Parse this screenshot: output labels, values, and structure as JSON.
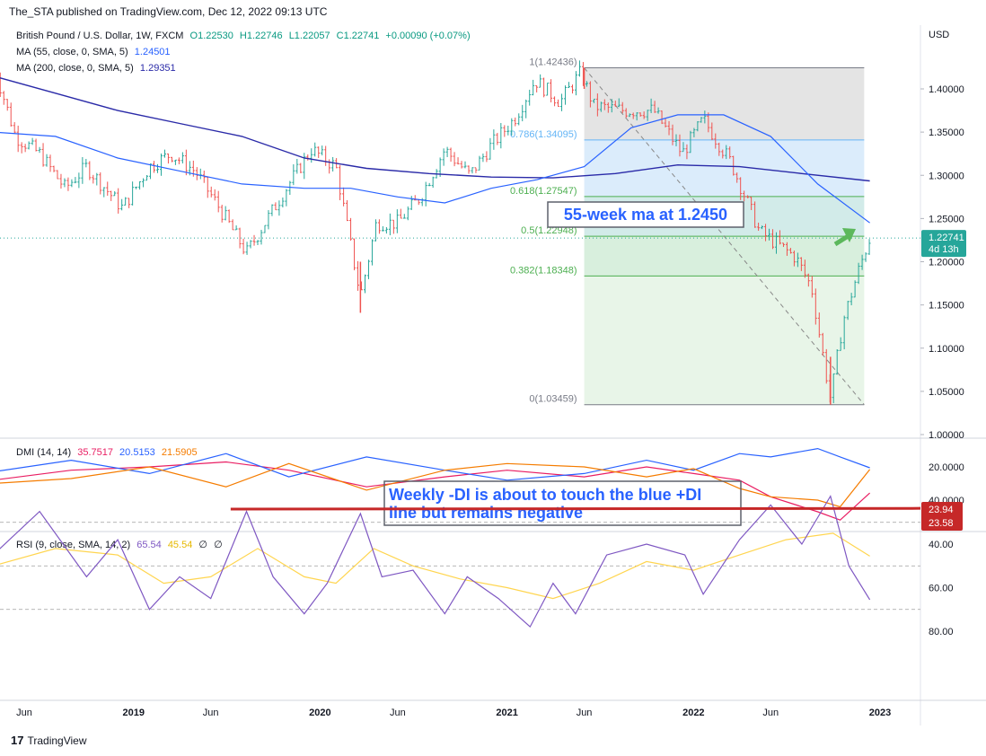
{
  "header": {
    "publisher": "The_STA published on TradingView.com, Dec 12, 2022 09:13 UTC",
    "symbol": "British Pound / U.S. Dollar, 1W, FXCM",
    "ohlc": {
      "o": "O1.22530",
      "h": "H1.22746",
      "l": "L1.22057",
      "c": "C1.22741",
      "chg": "+0.00090 (+0.07%)"
    },
    "ma55_label": "MA (55, close, 0, SMA, 5)",
    "ma55_value": "1.24501",
    "ma200_label": "MA (200, close, 0, SMA, 5)",
    "ma200_value": "1.29351",
    "currency": "USD"
  },
  "colors": {
    "up": "#26a69a",
    "down": "#ef5350",
    "ma55": "#2962ff",
    "ma200": "#2a2aa8",
    "dmi_adx": "#e91e63",
    "dmi_plus": "#2962ff",
    "dmi_minus": "#f57c00",
    "rsi": "#7e57c2",
    "rsi_ma": "#ffd54f",
    "support": "#c62828",
    "arrow": "#5cb85c"
  },
  "chart_data": [
    {
      "type": "candlestick",
      "title": "British Pound / U.S. Dollar, 1W, FXCM",
      "ylabel": "USD",
      "ylim": [
        1.0,
        1.45
      ],
      "y_ticks": [
        "1.00000",
        "1.05000",
        "1.10000",
        "1.15000",
        "1.20000",
        "1.25000",
        "1.30000",
        "1.35000",
        "1.40000"
      ],
      "x_ticks": [
        "Jun",
        "2019",
        "Jun",
        "2020",
        "Jun",
        "2021",
        "Jun",
        "2022",
        "Jun",
        "2023"
      ],
      "x_tick_dates": [
        "2018-06-01",
        "2019-01-01",
        "2019-06-01",
        "2020-01-01",
        "2020-06-01",
        "2021-01-01",
        "2021-06-01",
        "2022-01-01",
        "2022-06-01",
        "2023-01-01"
      ],
      "close_path": [
        [
          "2018-04-01",
          1.43
        ],
        [
          "2018-05-15",
          1.345
        ],
        [
          "2018-07-01",
          1.325
        ],
        [
          "2018-08-20",
          1.285
        ],
        [
          "2018-10-01",
          1.31
        ],
        [
          "2018-12-10",
          1.262
        ],
        [
          "2019-02-01",
          1.31
        ],
        [
          "2019-03-15",
          1.325
        ],
        [
          "2019-05-01",
          1.305
        ],
        [
          "2019-06-15",
          1.265
        ],
        [
          "2019-08-10",
          1.21
        ],
        [
          "2019-09-15",
          1.245
        ],
        [
          "2019-11-01",
          1.29
        ],
        [
          "2019-12-15",
          1.33
        ],
        [
          "2020-02-01",
          1.31
        ],
        [
          "2020-03-20",
          1.16
        ],
        [
          "2020-04-20",
          1.245
        ],
        [
          "2020-06-01",
          1.245
        ],
        [
          "2020-07-15",
          1.275
        ],
        [
          "2020-09-01",
          1.33
        ],
        [
          "2020-10-20",
          1.3
        ],
        [
          "2020-12-01",
          1.335
        ],
        [
          "2021-01-15",
          1.365
        ],
        [
          "2021-02-25",
          1.41
        ],
        [
          "2021-04-15",
          1.385
        ],
        [
          "2021-05-25",
          1.419
        ],
        [
          "2021-06-20",
          1.38
        ],
        [
          "2021-08-20",
          1.375
        ],
        [
          "2021-10-15",
          1.375
        ],
        [
          "2021-12-10",
          1.325
        ],
        [
          "2022-01-20",
          1.365
        ],
        [
          "2022-03-15",
          1.315
        ],
        [
          "2022-05-10",
          1.235
        ],
        [
          "2022-06-15",
          1.22
        ],
        [
          "2022-07-20",
          1.205
        ],
        [
          "2022-08-20",
          1.17
        ],
        [
          "2022-09-26",
          1.04
        ],
        [
          "2022-10-20",
          1.13
        ],
        [
          "2022-11-20",
          1.19
        ],
        [
          "2022-12-12",
          1.22741
        ]
      ],
      "wicks": [
        [
          "2020-03-20",
          1.1409,
          1.2
        ],
        [
          "2022-09-26",
          1.03459,
          1.09
        ],
        [
          "2021-06-01",
          1.4,
          1.42436
        ]
      ],
      "series": [
        {
          "name": "MA (55, close, 0, SMA, 5)",
          "last": 1.24501,
          "points": [
            [
              "2018-04-01",
              1.35
            ],
            [
              "2018-08-01",
              1.345
            ],
            [
              "2018-12-01",
              1.32
            ],
            [
              "2019-04-01",
              1.305
            ],
            [
              "2019-08-01",
              1.29
            ],
            [
              "2019-12-01",
              1.285
            ],
            [
              "2020-03-01",
              1.285
            ],
            [
              "2020-06-01",
              1.275
            ],
            [
              "2020-09-01",
              1.268
            ],
            [
              "2020-12-01",
              1.285
            ],
            [
              "2021-03-01",
              1.295
            ],
            [
              "2021-06-01",
              1.31
            ],
            [
              "2021-09-01",
              1.355
            ],
            [
              "2021-12-01",
              1.37
            ],
            [
              "2022-03-01",
              1.37
            ],
            [
              "2022-06-01",
              1.345
            ],
            [
              "2022-09-01",
              1.29
            ],
            [
              "2022-12-12",
              1.245
            ]
          ]
        },
        {
          "name": "MA (200, close, 0, SMA, 5)",
          "last": 1.29351,
          "points": [
            [
              "2018-04-01",
              1.415
            ],
            [
              "2018-08-01",
              1.395
            ],
            [
              "2018-12-01",
              1.375
            ],
            [
              "2019-04-01",
              1.36
            ],
            [
              "2019-08-01",
              1.345
            ],
            [
              "2019-12-01",
              1.32
            ],
            [
              "2020-04-01",
              1.308
            ],
            [
              "2020-08-01",
              1.302
            ],
            [
              "2020-12-01",
              1.298
            ],
            [
              "2021-04-01",
              1.297
            ],
            [
              "2021-08-01",
              1.302
            ],
            [
              "2021-12-01",
              1.312
            ],
            [
              "2022-04-01",
              1.31
            ],
            [
              "2022-08-01",
              1.302
            ],
            [
              "2022-12-12",
              1.2935
            ]
          ]
        }
      ],
      "fibonacci": {
        "start": "2021-06-01",
        "end": "2022-12-01",
        "levels": [
          {
            "label": "1(1.42436)",
            "value": 1.42436
          },
          {
            "label": "0.786(1.34095)",
            "value": 1.34095
          },
          {
            "label": "0.618(1.27547)",
            "value": 1.27547
          },
          {
            "label": "0.5(1.22948)",
            "value": 1.22948
          },
          {
            "label": "0.382(1.18348)",
            "value": 1.18348
          },
          {
            "label": "0(1.03459)",
            "value": 1.03459
          }
        ]
      },
      "trendline": [
        [
          "2021-06-01",
          1.42436
        ],
        [
          "2022-12-01",
          1.03459
        ]
      ],
      "last_price_label": "1.22741",
      "countdown_label": "4d 13h",
      "annotation": "55-week ma at 1.2450"
    },
    {
      "type": "line",
      "title": "DMI (14, 14)",
      "ylim": [
        0,
        60
      ],
      "y_ticks": [
        "20.0000",
        "40.0000"
      ],
      "values_label": [
        "35.7517",
        "20.5153",
        "21.5905"
      ],
      "series": [
        {
          "name": "ADX",
          "last": 35.7517,
          "points": [
            [
              "2018-04-01",
              28
            ],
            [
              "2018-09-01",
              22
            ],
            [
              "2019-02-01",
              20
            ],
            [
              "2019-07-01",
              17
            ],
            [
              "2019-11-01",
              22
            ],
            [
              "2020-04-01",
              32
            ],
            [
              "2020-09-01",
              26
            ],
            [
              "2021-01-01",
              22
            ],
            [
              "2021-06-01",
              26
            ],
            [
              "2021-10-01",
              20
            ],
            [
              "2022-01-01",
              24
            ],
            [
              "2022-04-01",
              28
            ],
            [
              "2022-06-01",
              38
            ],
            [
              "2022-09-01",
              47
            ],
            [
              "2022-10-15",
              52
            ],
            [
              "2022-12-12",
              35.75
            ]
          ]
        },
        {
          "name": "+DI",
          "last": 20.5153,
          "points": [
            [
              "2018-04-01",
              23
            ],
            [
              "2018-09-01",
              16
            ],
            [
              "2019-02-01",
              24
            ],
            [
              "2019-07-01",
              12
            ],
            [
              "2019-11-01",
              26
            ],
            [
              "2020-04-01",
              14
            ],
            [
              "2020-09-01",
              22
            ],
            [
              "2021-01-01",
              28
            ],
            [
              "2021-06-01",
              24
            ],
            [
              "2021-10-01",
              16
            ],
            [
              "2022-01-01",
              22
            ],
            [
              "2022-04-01",
              12
            ],
            [
              "2022-06-01",
              14
            ],
            [
              "2022-09-01",
              9
            ],
            [
              "2022-10-15",
              14
            ],
            [
              "2022-12-12",
              20.52
            ]
          ]
        },
        {
          "name": "-DI",
          "last": 21.5905,
          "points": [
            [
              "2018-04-01",
              30
            ],
            [
              "2018-09-01",
              27
            ],
            [
              "2019-02-01",
              20
            ],
            [
              "2019-07-01",
              32
            ],
            [
              "2019-11-01",
              18
            ],
            [
              "2020-04-01",
              34
            ],
            [
              "2020-09-01",
              22
            ],
            [
              "2021-01-01",
              18
            ],
            [
              "2021-06-01",
              20
            ],
            [
              "2021-10-01",
              26
            ],
            [
              "2022-01-01",
              21
            ],
            [
              "2022-04-01",
              33
            ],
            [
              "2022-06-01",
              38
            ],
            [
              "2022-09-01",
              40
            ],
            [
              "2022-10-15",
              44
            ],
            [
              "2022-12-12",
              21.59
            ]
          ]
        }
      ],
      "annotation": "Weekly -DI is about to touch the blue +DI line but remains negative"
    },
    {
      "type": "line",
      "title": "RSI (9, close, SMA, 14, 2)",
      "ylim": [
        14,
        84
      ],
      "y_ticks": [
        "40.00",
        "60.00",
        "80.00"
      ],
      "bands": [
        30,
        50,
        70
      ],
      "values_label": [
        "65.54",
        "45.54",
        "∅",
        "∅"
      ],
      "series": [
        {
          "name": "RSI",
          "last": 65.54,
          "points": [
            [
              "2018-04-01",
              45
            ],
            [
              "2018-07-01",
              25
            ],
            [
              "2018-10-01",
              55
            ],
            [
              "2018-12-01",
              38
            ],
            [
              "2019-02-01",
              70
            ],
            [
              "2019-04-01",
              55
            ],
            [
              "2019-06-01",
              65
            ],
            [
              "2019-08-10",
              25
            ],
            [
              "2019-10-01",
              55
            ],
            [
              "2019-12-01",
              72
            ],
            [
              "2020-01-15",
              58
            ],
            [
              "2020-03-20",
              26
            ],
            [
              "2020-05-01",
              55
            ],
            [
              "2020-07-01",
              52
            ],
            [
              "2020-09-01",
              72
            ],
            [
              "2020-10-15",
              55
            ],
            [
              "2020-12-15",
              65
            ],
            [
              "2021-02-15",
              78
            ],
            [
              "2021-04-01",
              58
            ],
            [
              "2021-05-15",
              72
            ],
            [
              "2021-07-15",
              45
            ],
            [
              "2021-10-01",
              40
            ],
            [
              "2021-12-15",
              45
            ],
            [
              "2022-01-20",
              63
            ],
            [
              "2022-04-01",
              38
            ],
            [
              "2022-06-01",
              22
            ],
            [
              "2022-08-01",
              40
            ],
            [
              "2022-09-26",
              18
            ],
            [
              "2022-11-01",
              50
            ],
            [
              "2022-12-12",
              65.54
            ]
          ]
        },
        {
          "name": "RSI-based MA",
          "last": 45.54,
          "points": [
            [
              "2018-04-01",
              50
            ],
            [
              "2018-08-01",
              42
            ],
            [
              "2018-12-01",
              45
            ],
            [
              "2019-03-01",
              58
            ],
            [
              "2019-06-01",
              55
            ],
            [
              "2019-09-01",
              42
            ],
            [
              "2019-12-01",
              55
            ],
            [
              "2020-02-01",
              58
            ],
            [
              "2020-04-15",
              42
            ],
            [
              "2020-07-01",
              50
            ],
            [
              "2020-10-01",
              56
            ],
            [
              "2021-01-01",
              60
            ],
            [
              "2021-04-01",
              65
            ],
            [
              "2021-07-01",
              58
            ],
            [
              "2021-10-01",
              48
            ],
            [
              "2022-01-01",
              52
            ],
            [
              "2022-04-01",
              45
            ],
            [
              "2022-07-01",
              38
            ],
            [
              "2022-10-01",
              35
            ],
            [
              "2022-12-12",
              45.54
            ]
          ]
        }
      ],
      "support_line": [
        [
          "2019-07-10",
          23.94
        ],
        [
          "2022-12-12",
          23.58
        ]
      ],
      "labels": [
        "23.94",
        "23.58"
      ]
    }
  ],
  "footer": {
    "brand": "TradingView"
  }
}
